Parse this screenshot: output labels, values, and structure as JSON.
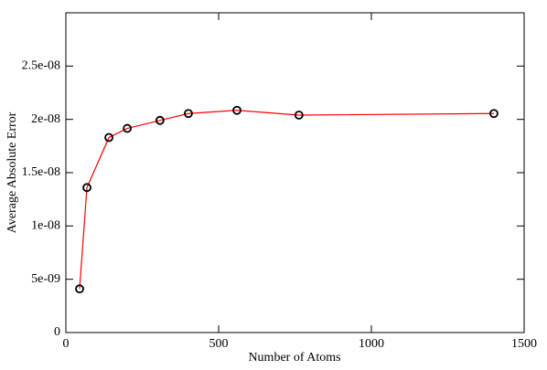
{
  "chart_data": {
    "type": "line",
    "x_label": "Number of Atoms",
    "y_label": "Average Absolute Error",
    "series": [
      {
        "color": "#ff0000",
        "marker_color": "#000000",
        "x": [
          45,
          69,
          141,
          201,
          308,
          401,
          560,
          763,
          1401
        ],
        "values": [
          4.1e-09,
          1.36e-08,
          1.83e-08,
          1.915e-08,
          1.99e-08,
          2.055e-08,
          2.085e-08,
          2.04e-08,
          2.055e-08
        ]
      }
    ],
    "xlim": [
      0,
      1500
    ],
    "xticks": [
      0,
      500,
      1000,
      1500
    ],
    "ylim": [
      0,
      3e-08
    ],
    "yticks": [
      0,
      {
        "value": 5e-09,
        "label": "5e-09"
      },
      {
        "value": 1e-08,
        "label": "1e-08"
      },
      {
        "value": 1.5e-08,
        "label": "1.5e-08"
      },
      {
        "value": 2e-08,
        "label": "2e-08"
      },
      {
        "value": 2.5e-08,
        "label": "2.5e-08"
      }
    ],
    "grid": false
  }
}
